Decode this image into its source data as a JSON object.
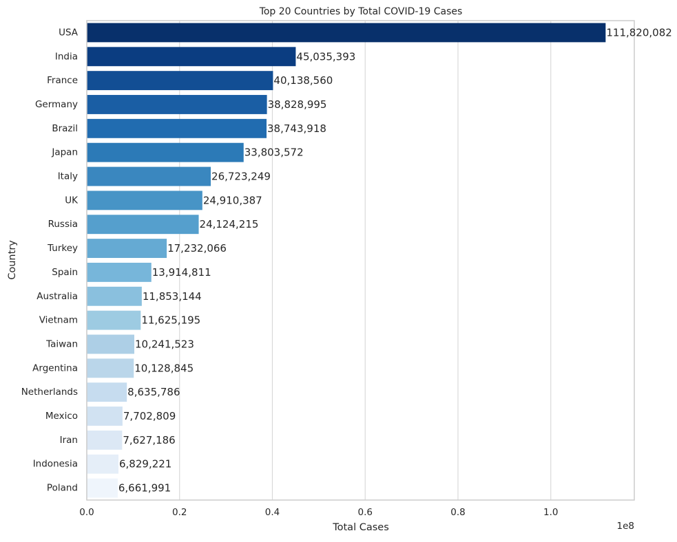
{
  "chart_data": {
    "type": "bar",
    "orientation": "horizontal",
    "title": "Top 20 Countries by Total COVID-19 Cases",
    "xlabel": "Total Cases",
    "ylabel": "Country",
    "x_offset_text": "1e8",
    "xlim": [
      0,
      118000000
    ],
    "x_ticks": [
      0,
      20000000,
      40000000,
      60000000,
      80000000,
      100000000
    ],
    "x_tick_labels": [
      "0.0",
      "0.2",
      "0.4",
      "0.6",
      "0.8",
      "1.0"
    ],
    "grid": "vertical",
    "categories": [
      "USA",
      "India",
      "France",
      "Germany",
      "Brazil",
      "Japan",
      "Italy",
      "UK",
      "Russia",
      "Turkey",
      "Spain",
      "Australia",
      "Vietnam",
      "Taiwan",
      "Argentina",
      "Netherlands",
      "Mexico",
      "Iran",
      "Indonesia",
      "Poland"
    ],
    "values": [
      111820082,
      45035393,
      40138560,
      38828995,
      38743918,
      33803572,
      26723249,
      24910387,
      24124215,
      17232066,
      13914811,
      11853144,
      11625195,
      10241523,
      10128845,
      8635786,
      7702809,
      7627186,
      6829221,
      6661991
    ],
    "value_labels": [
      "111,820,082",
      "45,035,393",
      "40,138,560",
      "38,828,995",
      "38,743,918",
      "33,803,572",
      "26,723,249",
      "24,910,387",
      "24,124,215",
      "17,232,066",
      "13,914,811",
      "11,853,144",
      "11,625,195",
      "10,241,523",
      "10,128,845",
      "8,635,786",
      "7,702,809",
      "7,627,186",
      "6,829,221",
      "6,661,991"
    ],
    "colors": [
      "#08306b",
      "#0b3d81",
      "#124e94",
      "#1a5ea4",
      "#216cb0",
      "#2c7ab7",
      "#3a87bf",
      "#4794c6",
      "#559fcd",
      "#65aad3",
      "#77b6da",
      "#8ac0de",
      "#9dcbe2",
      "#adcfe6",
      "#bad6ea",
      "#c6dcef",
      "#d1e2f2",
      "#dce8f5",
      "#e5eef8",
      "#eff5fc"
    ]
  }
}
